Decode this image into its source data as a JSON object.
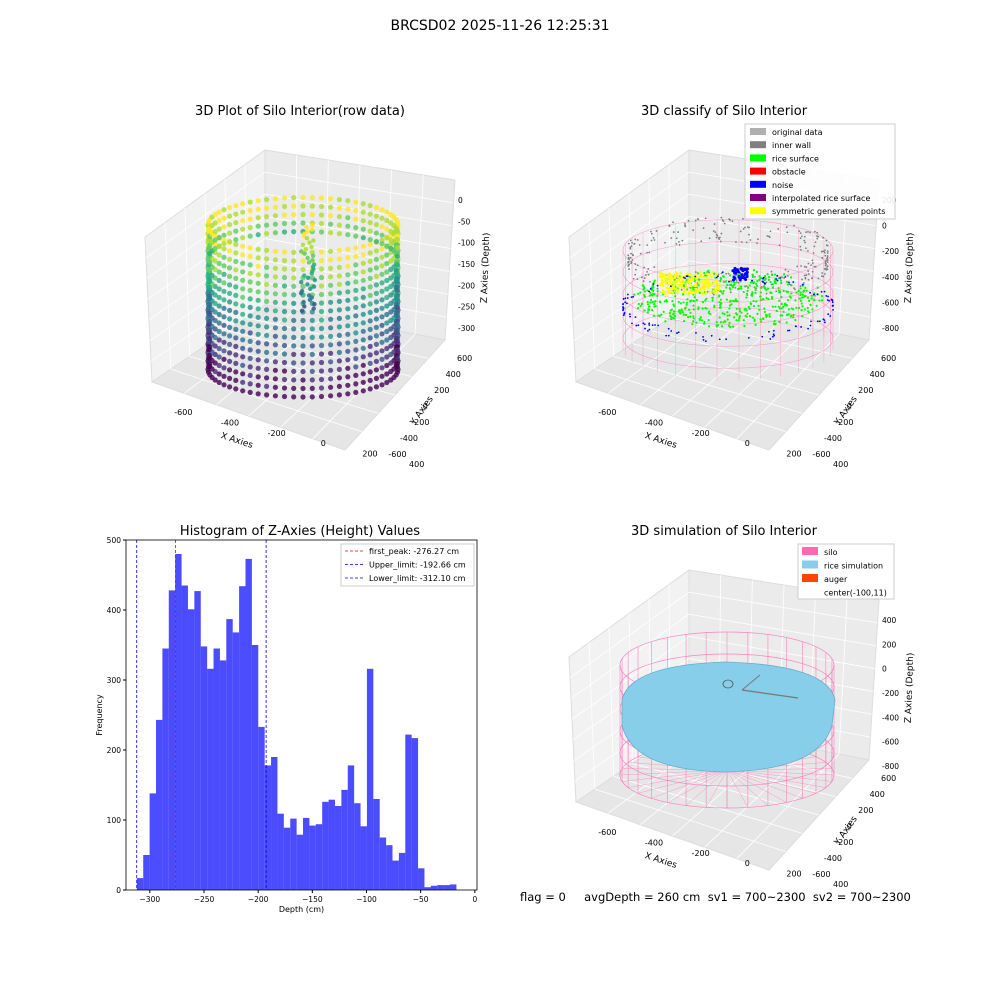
{
  "suptitle": "BRCSD02 2025-11-26 12:25:31",
  "footer": "flag = 0     avgDepth = 260 cm  sv1 = 700~2300  sv2 = 700~2300",
  "colors": {
    "hist": "#0000ff",
    "first_peak": "#ff0000",
    "limits": "#0000ff",
    "silo": "#ff69b4",
    "rice": "#87ceeb",
    "auger": "#ff4500",
    "original": "#b0b0b0",
    "inner_wall": "#808080",
    "rice_surface": "#00ff00",
    "obstacle": "#ff0000",
    "noise": "#0000ff",
    "interp": "#800080",
    "symmetric": "#ffff00"
  },
  "chart_data": [
    {
      "type": "scatter",
      "panel": "raw",
      "title": "3D Plot of Silo Interior(row data)",
      "xlabel": "X Axies",
      "ylabel": "Y Axies",
      "zlabel": "Z Axies (Depth)",
      "x_ticks": [
        "-600",
        "-400",
        "-200",
        "0",
        "200",
        "400"
      ],
      "y_ticks": [
        "-600",
        "-400",
        "-200",
        "0",
        "200",
        "400",
        "600"
      ],
      "z_ticks": [
        "0",
        "-50",
        "-100",
        "-150",
        "-200",
        "-250",
        "-300"
      ]
    },
    {
      "type": "scatter",
      "panel": "classify",
      "title": "3D classify of Silo Interior",
      "xlabel": "X Axies",
      "ylabel": "Y Axies",
      "zlabel": "Z Axies (Depth)",
      "x_ticks": [
        "-600",
        "-400",
        "-200",
        "0",
        "200",
        "400"
      ],
      "y_ticks": [
        "-600",
        "-400",
        "-200",
        "0",
        "200",
        "400",
        "600"
      ],
      "z_ticks": [
        "200",
        "0",
        "-200",
        "-400",
        "-600",
        "-800"
      ],
      "legend_position": "top-right",
      "legend": [
        "original data",
        "inner wall",
        "rice surface",
        "obstacle",
        "noise",
        "interpolated rice surface",
        "symmetric generated points"
      ]
    },
    {
      "type": "bar",
      "panel": "histogram",
      "title": "Histogram of Z-Axies (Height) Values",
      "xlabel": "Depth (cm)",
      "ylabel": "Frequency",
      "xlim": [
        -322,
        2
      ],
      "ylim": [
        0,
        500
      ],
      "x_ticks": [
        -300,
        -250,
        -200,
        -150,
        -100,
        -50,
        0
      ],
      "y_ticks": [
        0,
        100,
        200,
        300,
        400,
        500
      ],
      "bin_start": -312,
      "bin_width": 5.9,
      "values": [
        17,
        50,
        138,
        243,
        345,
        428,
        480,
        435,
        401,
        427,
        348,
        316,
        345,
        328,
        387,
        368,
        434,
        473,
        350,
        233,
        178,
        190,
        109,
        89,
        102,
        79,
        103,
        92,
        94,
        126,
        129,
        120,
        143,
        178,
        124,
        91,
        316,
        130,
        75,
        64,
        42,
        53,
        222,
        217,
        31,
        4,
        6,
        7,
        7,
        8
      ],
      "lines": [
        {
          "label": "first_peak: -276.27 cm",
          "x": -276.27,
          "color": "#ff0000"
        },
        {
          "label": "Upper_limit: -192.66 cm",
          "x": -192.66,
          "color": "#0000ff"
        },
        {
          "label": "Lower_limit: -312.10 cm",
          "x": -312.1,
          "color": "#0000ff"
        }
      ],
      "legend_position": "top-right"
    },
    {
      "type": "scatter",
      "panel": "simulation",
      "title": "3D simulation of Silo Interior",
      "xlabel": "X Axies",
      "ylabel": "Y Axies",
      "zlabel": "Z Axies (Depth)",
      "x_ticks": [
        "-600",
        "-400",
        "-200",
        "0",
        "200",
        "400"
      ],
      "y_ticks": [
        "-600",
        "-400",
        "-200",
        "0",
        "200",
        "400",
        "600"
      ],
      "z_ticks": [
        "400",
        "200",
        "0",
        "-200",
        "-400",
        "-600",
        "-800"
      ],
      "legend_position": "top-right",
      "legend": [
        "silo",
        "rice simulation",
        "auger",
        "center(-100,11)"
      ]
    }
  ]
}
